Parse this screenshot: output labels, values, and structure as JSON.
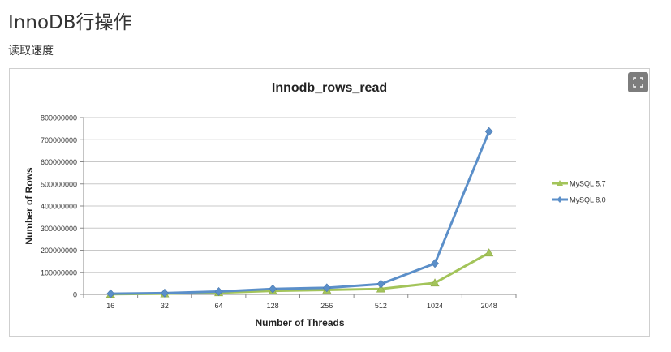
{
  "page": {
    "title": "InnoDB行操作",
    "section_label": "读取速度"
  },
  "toolbar": {
    "expand_icon": "expand-icon"
  },
  "colors": {
    "mysql57": "#a3c45a",
    "mysql80": "#5b8fc9",
    "grid": "#c8c8c8",
    "axis": "#8a8a8a"
  },
  "chart_data": {
    "type": "line",
    "title": "Innodb_rows_read",
    "xlabel": "Number of Threads",
    "ylabel": "Number of Rows",
    "categories": [
      "16",
      "32",
      "64",
      "128",
      "256",
      "512",
      "1024",
      "2048"
    ],
    "y_ticks": [
      "0",
      "100000000",
      "200000000",
      "300000000",
      "400000000",
      "500000000",
      "600000000",
      "700000000",
      "800000000"
    ],
    "ylim": [
      0,
      800000000
    ],
    "grid": true,
    "legend_position": "right",
    "series": [
      {
        "name": "MySQL 5.7",
        "marker": "triangle",
        "values": [
          1000000,
          3000000,
          8000000,
          16000000,
          20000000,
          25000000,
          52000000,
          188000000
        ]
      },
      {
        "name": "MySQL 8.0",
        "marker": "diamond",
        "values": [
          3000000,
          6000000,
          13000000,
          25000000,
          30000000,
          47000000,
          140000000,
          737000000
        ]
      }
    ]
  }
}
